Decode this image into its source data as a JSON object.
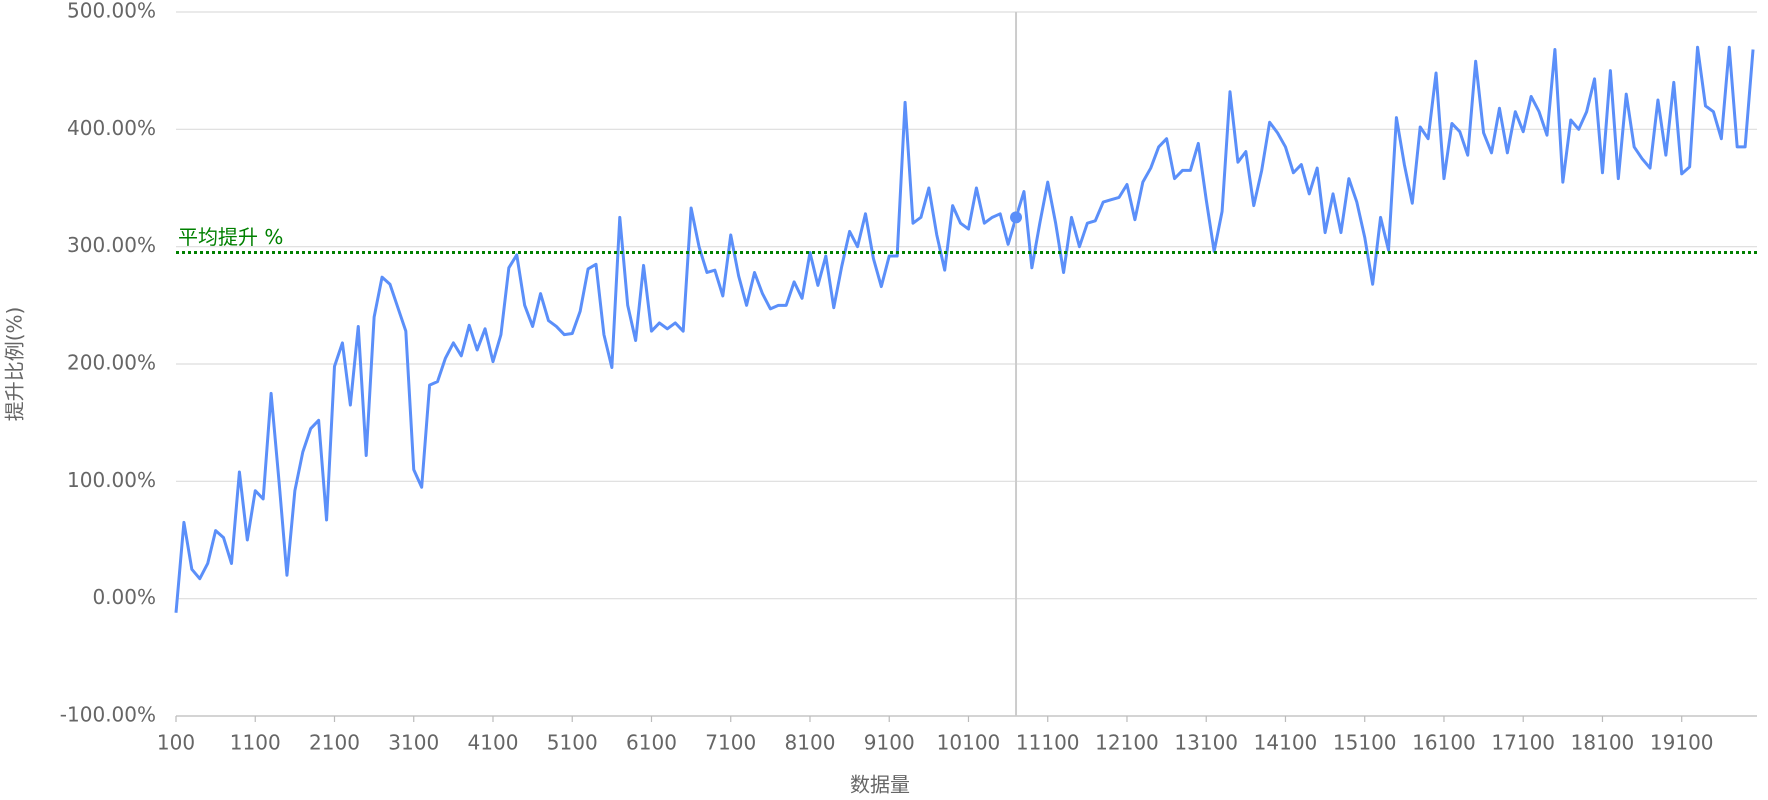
{
  "chart_data": {
    "type": "line",
    "x_label": "数据量",
    "y_label": "提升比例(%)",
    "x": [
      100,
      200,
      300,
      400,
      500,
      600,
      700,
      800,
      900,
      1000,
      1100,
      1200,
      1300,
      1400,
      1500,
      1600,
      1700,
      1800,
      1900,
      2000,
      2100,
      2200,
      2300,
      2400,
      2500,
      2600,
      2700,
      2800,
      2900,
      3000,
      3100,
      3200,
      3300,
      3400,
      3500,
      3600,
      3700,
      3800,
      3900,
      4000,
      4100,
      4200,
      4300,
      4400,
      4500,
      4600,
      4700,
      4800,
      4900,
      5000,
      5100,
      5200,
      5300,
      5400,
      5500,
      5600,
      5700,
      5800,
      5900,
      6000,
      6100,
      6200,
      6300,
      6400,
      6500,
      6600,
      6700,
      6800,
      6900,
      7000,
      7100,
      7200,
      7300,
      7400,
      7500,
      7600,
      7700,
      7800,
      7900,
      8000,
      8100,
      8200,
      8300,
      8400,
      8500,
      8600,
      8700,
      8800,
      8900,
      9000,
      9100,
      9200,
      9300,
      9400,
      9500,
      9600,
      9700,
      9800,
      9900,
      10000,
      10100,
      10200,
      10300,
      10400,
      10500,
      10600,
      10700,
      10800,
      10900,
      11000,
      11100,
      11200,
      11300,
      11400,
      11500,
      11600,
      11700,
      11800,
      11900,
      12000,
      12100,
      12200,
      12300,
      12400,
      12500,
      12600,
      12700,
      12800,
      12900,
      13000,
      13100,
      13200,
      13300,
      13400,
      13500,
      13600,
      13700,
      13800,
      13900,
      14000,
      14100,
      14200,
      14300,
      14400,
      14500,
      14600,
      14700,
      14800,
      14900,
      15000,
      15100,
      15200,
      15300,
      15400,
      15500,
      15600,
      15700,
      15800,
      15900,
      16000,
      16100,
      16200,
      16300,
      16400,
      16500,
      16600,
      16700,
      16800,
      16900,
      17000,
      17100,
      17200,
      17300,
      17400,
      17500,
      17600,
      17700,
      17800,
      17900,
      18000,
      18100,
      18200,
      18300,
      18400,
      18500,
      18600,
      18700,
      18800,
      18900,
      19000,
      19100,
      19200,
      19300,
      19400,
      19500,
      19600,
      19700,
      19800,
      19900,
      20000
    ],
    "series": [
      {
        "color": "#5b8ff9",
        "values": [
          -12,
          65,
          25,
          17,
          30,
          58,
          52,
          30,
          108,
          50,
          92,
          85,
          175,
          100,
          20,
          92,
          125,
          145,
          152,
          67,
          198,
          218,
          165,
          232,
          122,
          240,
          274,
          268,
          248,
          228,
          110,
          95,
          182,
          185,
          205,
          218,
          207,
          233,
          212,
          230,
          202,
          225,
          282,
          293,
          250,
          232,
          260,
          237,
          232,
          225,
          226,
          245,
          281,
          285,
          225,
          197,
          325,
          250,
          220,
          284,
          228,
          235,
          230,
          235,
          228,
          333,
          300,
          278,
          280,
          258,
          310,
          275,
          250,
          278,
          260,
          247,
          250,
          250,
          270,
          256,
          295,
          267,
          292,
          248,
          283,
          313,
          300,
          328,
          290,
          266,
          292,
          292,
          423,
          320,
          325,
          350,
          310,
          280,
          335,
          320,
          315,
          350,
          320,
          325,
          328,
          302,
          325,
          347,
          282,
          320,
          355,
          320,
          278,
          325,
          300,
          320,
          322,
          338,
          340,
          342,
          353,
          323,
          355,
          367,
          385,
          392,
          358,
          365,
          365,
          388,
          340,
          296,
          330,
          432,
          372,
          381,
          335,
          365,
          406,
          397,
          385,
          363,
          370,
          345,
          367,
          312,
          345,
          312,
          358,
          338,
          308,
          268,
          325,
          297,
          410,
          370,
          337,
          402,
          392,
          448,
          358,
          405,
          398,
          378,
          458,
          397,
          380,
          418,
          380,
          415,
          398,
          428,
          415,
          395,
          468,
          355,
          408,
          400,
          415,
          443,
          363,
          450,
          358,
          430,
          385,
          375,
          367,
          425,
          378,
          440,
          362,
          368,
          470,
          420,
          415,
          392,
          470,
          385,
          385,
          468
        ]
      }
    ],
    "xlim": [
      100,
      20050
    ],
    "xticks": [
      100,
      1100,
      2100,
      3100,
      4100,
      5100,
      6100,
      7100,
      8100,
      9100,
      10100,
      11100,
      12100,
      13100,
      14100,
      15100,
      16100,
      17100,
      18100,
      19100
    ],
    "ylim": [
      -100,
      500
    ],
    "yticks": [
      {
        "value": -100,
        "label": "-100.00%"
      },
      {
        "value": 0,
        "label": "0.00%"
      },
      {
        "value": 100,
        "label": "100.00%"
      },
      {
        "value": 200,
        "label": "200.00%"
      },
      {
        "value": 300,
        "label": "300.00%"
      },
      {
        "value": 400,
        "label": "400.00%"
      },
      {
        "value": 500,
        "label": "500.00%"
      }
    ],
    "grid": true,
    "reference_line": {
      "value": 295,
      "label": "平均提升 %",
      "color": "#008000"
    },
    "hover_x": 10700
  }
}
